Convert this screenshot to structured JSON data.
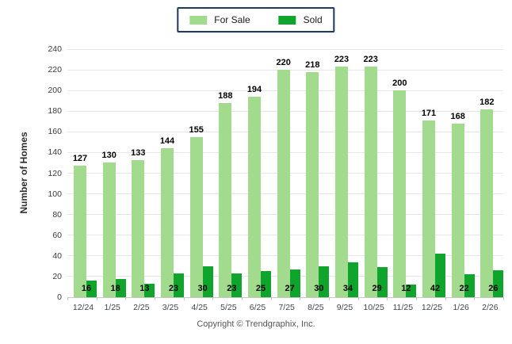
{
  "legend": {
    "for_sale_label": "For Sale",
    "sold_label": "Sold"
  },
  "axes": {
    "y_label": "Number of Homes"
  },
  "footer": {
    "copyright": "Copyright © Trendgraphix, Inc."
  },
  "colors": {
    "for_sale": "#A3DB8E",
    "sold": "#0FA52D",
    "legend_border": "#1E3A5F",
    "gridline": "#E7E7E7",
    "axis_line": "#C8C8C8"
  },
  "chart_data": {
    "type": "bar",
    "title": "",
    "xlabel": "",
    "ylabel": "Number of Homes",
    "categories": [
      "12/24",
      "1/25",
      "2/25",
      "3/25",
      "4/25",
      "5/25",
      "6/25",
      "7/25",
      "8/25",
      "9/25",
      "10/25",
      "11/25",
      "12/25",
      "1/26",
      "2/26"
    ],
    "series": [
      {
        "name": "For Sale",
        "color": "#A3DB8E",
        "values": [
          127,
          130,
          133,
          144,
          155,
          188,
          194,
          220,
          218,
          223,
          223,
          200,
          171,
          168,
          182
        ]
      },
      {
        "name": "Sold",
        "color": "#0FA52D",
        "values": [
          16,
          18,
          13,
          23,
          30,
          23,
          25,
          27,
          30,
          34,
          29,
          12,
          42,
          22,
          26
        ]
      }
    ],
    "ylim": [
      0,
      240
    ],
    "yticks": [
      0,
      20,
      40,
      60,
      80,
      100,
      120,
      140,
      160,
      180,
      200,
      220,
      240
    ],
    "grid": true,
    "legend_position": "top-center"
  }
}
